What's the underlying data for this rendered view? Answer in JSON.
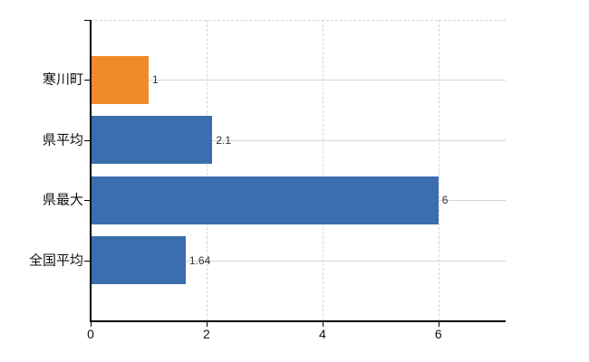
{
  "chart_data": {
    "type": "bar",
    "orientation": "horizontal",
    "title": "",
    "xlabel": "",
    "ylabel": "",
    "categories": [
      "寒川町",
      "県平均",
      "県最大",
      "全国平均"
    ],
    "values": [
      1,
      2.1,
      6,
      1.64
    ],
    "value_labels": [
      "1",
      "2.1",
      "6",
      "1.64"
    ],
    "bar_colors": [
      "#EF8B2B",
      "#3A6EAE",
      "#3A6EAE",
      "#3A6EAE"
    ],
    "xlim": [
      0,
      7.16
    ],
    "x_ticks": [
      0,
      2,
      4,
      6
    ],
    "x_tick_labels": [
      "0",
      "2",
      "4",
      "6"
    ],
    "grid": true,
    "legend": "none"
  },
  "colors": {
    "highlight_bar": "#EF8B2B",
    "default_bar": "#3A6EAE",
    "axis": "#000000",
    "gridline": "#d6d6d8",
    "category_text": "#111111",
    "value_text": "#333333",
    "background": "#ffffff"
  }
}
